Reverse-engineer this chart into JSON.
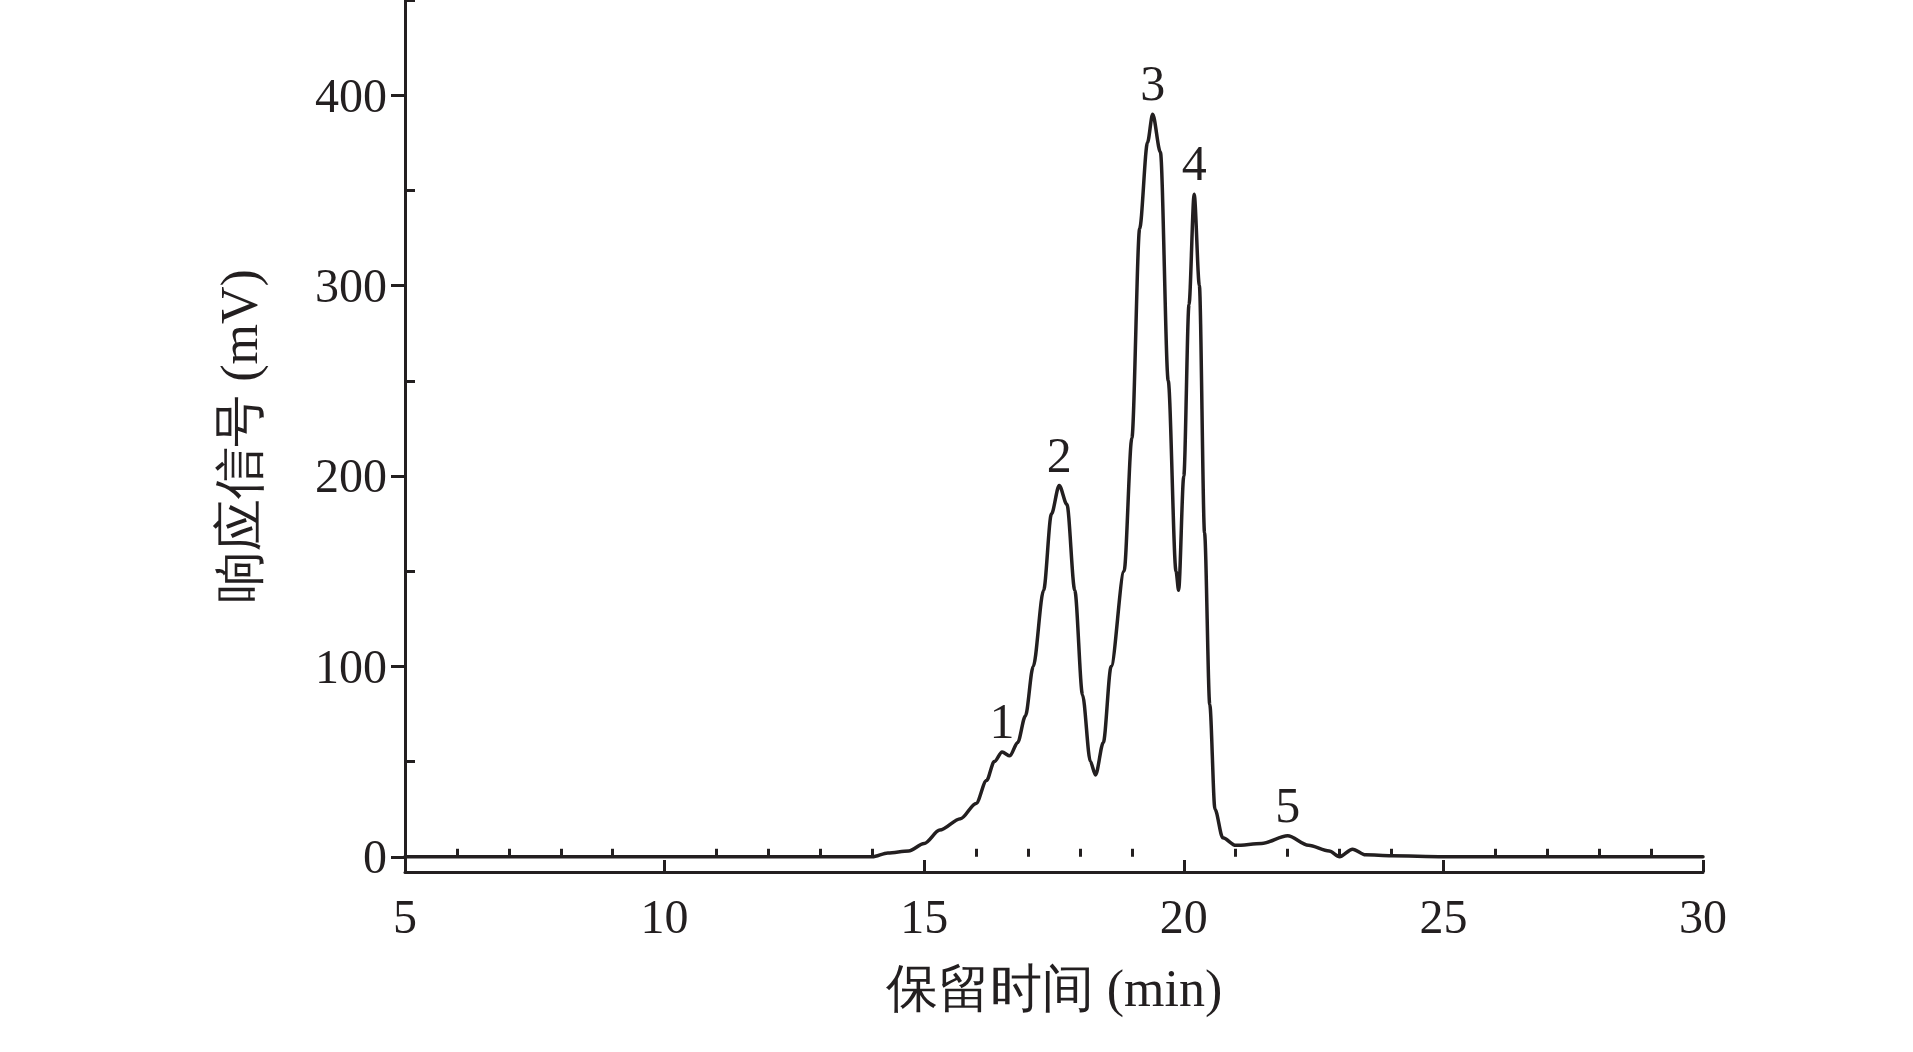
{
  "chart_data": {
    "type": "line",
    "xlabel": "保留时间 (min)",
    "ylabel": "响应信号 (mV)",
    "x": [
      5,
      8,
      11,
      13.5,
      14.0,
      14.3,
      14.7,
      15.0,
      15.3,
      15.7,
      16.0,
      16.2,
      16.35,
      16.5,
      16.65,
      16.8,
      16.95,
      17.1,
      17.3,
      17.45,
      17.6,
      17.75,
      17.9,
      18.05,
      18.2,
      18.3,
      18.45,
      18.6,
      18.85,
      19.0,
      19.15,
      19.3,
      19.4,
      19.55,
      19.7,
      19.85,
      19.9,
      20.0,
      20.1,
      20.2,
      20.3,
      20.4,
      20.5,
      20.6,
      20.75,
      21.0,
      21.5,
      22.0,
      22.4,
      22.8,
      23.0,
      23.25,
      23.5,
      24,
      25,
      27,
      30
    ],
    "series": [
      {
        "color": "#231f20",
        "values": [
          0,
          0,
          0,
          0,
          0,
          2,
          3,
          7,
          14,
          20,
          28,
          40,
          50,
          55,
          53,
          60,
          74,
          100,
          140,
          180,
          195,
          185,
          140,
          85,
          50,
          43,
          60,
          100,
          150,
          220,
          330,
          375,
          390,
          370,
          250,
          150,
          140,
          200,
          290,
          348,
          300,
          170,
          80,
          25,
          10,
          6,
          7,
          11,
          6,
          3,
          0,
          4,
          1,
          0.5,
          0,
          0,
          0
        ]
      }
    ],
    "xlim": [
      5,
      30
    ],
    "xticks": [
      5,
      10,
      15,
      20,
      25,
      30
    ],
    "ylim": [
      -8,
      450
    ],
    "yticks": [
      0,
      100,
      200,
      300,
      400
    ],
    "annotations": [
      {
        "text": "1",
        "x": 16.5,
        "y": 55
      },
      {
        "text": "2",
        "x": 17.6,
        "y": 195
      },
      {
        "text": "3",
        "x": 19.4,
        "y": 390
      },
      {
        "text": "4",
        "x": 20.2,
        "y": 348
      },
      {
        "text": "5",
        "x": 22.0,
        "y": 11
      }
    ],
    "grid": false,
    "marker": "none",
    "line_style": "solid"
  }
}
